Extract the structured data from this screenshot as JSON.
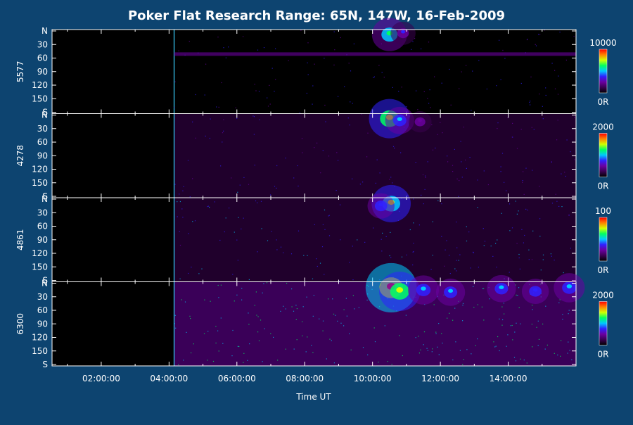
{
  "title": "Poker Flat Research Range: 65N, 147W, 16-Feb-2009",
  "chart_data": {
    "type": "heatmap",
    "x_axis": {
      "label": "Time UT",
      "ticks": [
        "02:00:00",
        "04:00:00",
        "06:00:00",
        "08:00:00",
        "10:00:00",
        "12:00:00",
        "14:00:00"
      ],
      "tick_hours": [
        2,
        4,
        6,
        8,
        10,
        12,
        14
      ],
      "range_hours": [
        0.55,
        16.0
      ]
    },
    "y_axis": {
      "labels": [
        "N",
        "30",
        "60",
        "90",
        "120",
        "150",
        "S"
      ],
      "values": [
        0,
        30,
        60,
        90,
        120,
        150,
        180
      ],
      "range": [
        0,
        180
      ]
    },
    "colormap": [
      "#000000",
      "#3a0050",
      "#6a00a0",
      "#3020ff",
      "#00c8ff",
      "#00ff60",
      "#d0ff00",
      "#ff8000",
      "#ff0000"
    ],
    "panels": [
      {
        "wavelength": "5577",
        "scale_max": "10000",
        "scale_min": "0R",
        "data_start_hour": 4.15,
        "background_level": 0.06,
        "bands": [
          {
            "angle": 52,
            "level": 0.22
          }
        ],
        "events": [
          {
            "hour": 10.5,
            "angle": 8,
            "intensity": 0.6
          },
          {
            "hour": 10.9,
            "angle": 5,
            "intensity": 0.35
          }
        ]
      },
      {
        "wavelength": "4278",
        "scale_max": "2000",
        "scale_min": "0R",
        "data_start_hour": 4.15,
        "background_level": 0.09,
        "bands": [],
        "events": [
          {
            "hour": 10.5,
            "angle": 8,
            "intensity": 0.75
          },
          {
            "hour": 10.8,
            "angle": 12,
            "intensity": 0.45
          },
          {
            "hour": 11.4,
            "angle": 15,
            "intensity": 0.3
          }
        ]
      },
      {
        "wavelength": "4861",
        "scale_max": "100",
        "scale_min": "0R",
        "data_start_hour": 4.15,
        "background_level": 0.16,
        "bands": [],
        "events": [
          {
            "hour": 10.55,
            "angle": 10,
            "intensity": 0.7
          },
          {
            "hour": 10.25,
            "angle": 15,
            "intensity": 0.4
          }
        ]
      },
      {
        "wavelength": "6300",
        "scale_max": "2000",
        "scale_min": "0R",
        "data_start_hour": 4.15,
        "background_level": 0.3,
        "bands": [],
        "events": [
          {
            "hour": 10.55,
            "angle": 10,
            "intensity": 1.0
          },
          {
            "hour": 10.8,
            "angle": 18,
            "intensity": 0.75
          },
          {
            "hour": 11.5,
            "angle": 15,
            "intensity": 0.5
          },
          {
            "hour": 12.3,
            "angle": 20,
            "intensity": 0.45
          },
          {
            "hour": 13.8,
            "angle": 12,
            "intensity": 0.45
          },
          {
            "hour": 14.8,
            "angle": 18,
            "intensity": 0.4
          },
          {
            "hour": 15.8,
            "angle": 10,
            "intensity": 0.5
          }
        ]
      }
    ]
  }
}
